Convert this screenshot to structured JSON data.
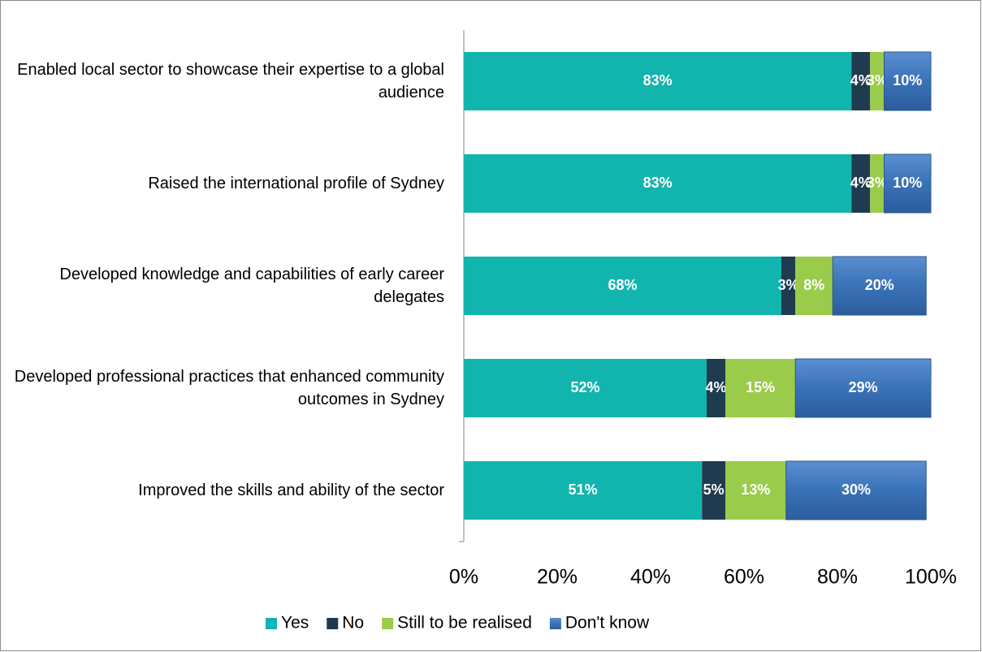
{
  "chart_data": {
    "type": "stacked-bar-horizontal",
    "categories": [
      "Enabled local sector to showcase their expertise to a global audience",
      "Raised the international profile of Sydney",
      "Developed knowledge and capabilities of early career delegates",
      "Developed professional practices that enhanced community outcomes in Sydney",
      "Improved the skills and ability of the sector"
    ],
    "series": [
      {
        "name": "Yes",
        "color": "#12b5ae",
        "values": [
          83,
          83,
          68,
          52,
          51
        ],
        "value_labels": [
          "83%",
          "83%",
          "68%",
          "52%",
          "51%"
        ]
      },
      {
        "name": "No",
        "color": "#1f3b4f",
        "values": [
          4,
          4,
          3,
          4,
          5
        ],
        "value_labels": [
          "4%",
          "4%",
          "3%",
          "4%",
          "5%"
        ]
      },
      {
        "name": "Still to be realised",
        "color": "#9bcb4a",
        "values": [
          3,
          3,
          8,
          15,
          13
        ],
        "value_labels": [
          "3%",
          "3%",
          "8%",
          "15%",
          "13%"
        ]
      },
      {
        "name": "Don't know",
        "color": "#3a72b8",
        "values": [
          10,
          10,
          20,
          29,
          30
        ],
        "value_labels": [
          "10%",
          "10%",
          "20%",
          "29%",
          "30%"
        ]
      }
    ],
    "xlim": [
      0,
      100
    ],
    "xticks": [
      {
        "value": 0,
        "label": "0%"
      },
      {
        "value": 20,
        "label": "20%"
      },
      {
        "value": 40,
        "label": "40%"
      },
      {
        "value": 60,
        "label": "60%"
      },
      {
        "value": 80,
        "label": "80%"
      },
      {
        "value": 100,
        "label": "100%"
      }
    ],
    "legend": "bottom"
  }
}
